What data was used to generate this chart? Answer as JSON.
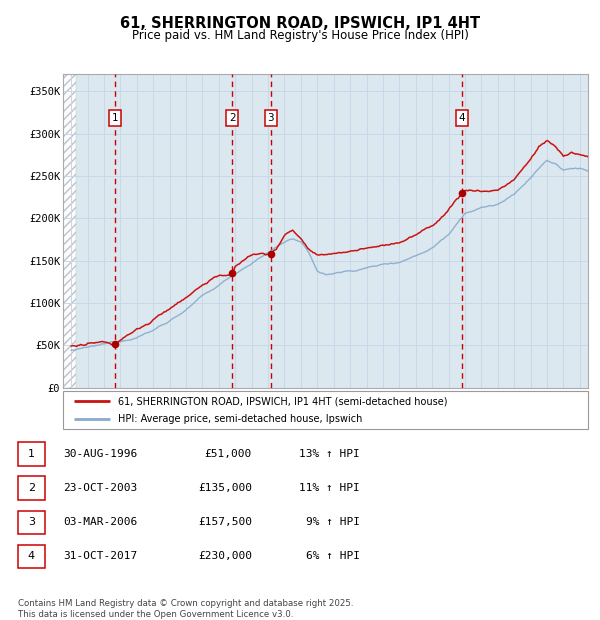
{
  "title": "61, SHERRINGTON ROAD, IPSWICH, IP1 4HT",
  "subtitle": "Price paid vs. HM Land Registry's House Price Index (HPI)",
  "xlim": [
    1993.5,
    2025.5
  ],
  "ylim": [
    0,
    370000
  ],
  "yticks": [
    0,
    50000,
    100000,
    150000,
    200000,
    250000,
    300000,
    350000
  ],
  "ytick_labels": [
    "£0",
    "£50K",
    "£100K",
    "£150K",
    "£200K",
    "£250K",
    "£300K",
    "£350K"
  ],
  "xticks": [
    1994,
    1995,
    1996,
    1997,
    1998,
    1999,
    2000,
    2001,
    2002,
    2003,
    2004,
    2005,
    2006,
    2007,
    2008,
    2009,
    2010,
    2011,
    2012,
    2013,
    2014,
    2015,
    2016,
    2017,
    2018,
    2019,
    2020,
    2021,
    2022,
    2023,
    2024,
    2025
  ],
  "sale_dates": [
    1996.66,
    2003.81,
    2006.17,
    2017.83
  ],
  "sale_prices": [
    51000,
    135000,
    157500,
    230000
  ],
  "sale_labels": [
    "1",
    "2",
    "3",
    "4"
  ],
  "vline_color": "#cc0000",
  "dot_color": "#aa0000",
  "line_color_red": "#cc1111",
  "line_color_blue": "#88aacc",
  "grid_color": "#c8d8e8",
  "bg_color": "#dce8f0",
  "footnote": "Contains HM Land Registry data © Crown copyright and database right 2025.\nThis data is licensed under the Open Government Licence v3.0.",
  "legend_entries": [
    "61, SHERRINGTON ROAD, IPSWICH, IP1 4HT (semi-detached house)",
    "HPI: Average price, semi-detached house, Ipswich"
  ],
  "table_rows": [
    [
      "1",
      "30-AUG-1996",
      "£51,000",
      "13% ↑ HPI"
    ],
    [
      "2",
      "23-OCT-2003",
      "£135,000",
      "11% ↑ HPI"
    ],
    [
      "3",
      "03-MAR-2006",
      "£157,500",
      "9% ↑ HPI"
    ],
    [
      "4",
      "31-OCT-2017",
      "£230,000",
      "6% ↑ HPI"
    ]
  ]
}
